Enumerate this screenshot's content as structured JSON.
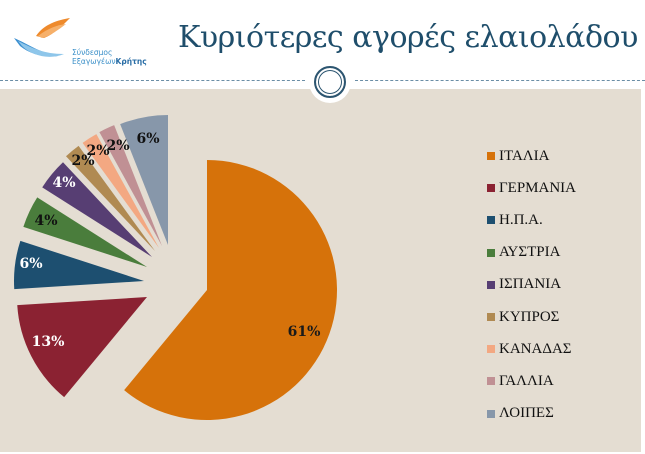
{
  "header": {
    "logo_line1": "Σύνδεσμος",
    "logo_line2_a": "Εξαγωγέων",
    "logo_line2_b": "Κρήτης",
    "title": "Κυριότερες αγορές ελαιολάδου"
  },
  "legend": [
    {
      "label": "ΙΤΑΛΙΑ",
      "color": "#d6720a"
    },
    {
      "label": "ΓΕΡΜΑΝΙΑ",
      "color": "#8b2232"
    },
    {
      "label": "Η.Π.Α.",
      "color": "#1d4f70"
    },
    {
      "label": "ΑΥΣΤΡΙΑ",
      "color": "#4a7d3c"
    },
    {
      "label": "ΙΣΠΑΝΙΑ",
      "color": "#573e73"
    },
    {
      "label": "ΚΥΠΡΟΣ",
      "color": "#b08a52"
    },
    {
      "label": "ΚΑΝΑΔΑΣ",
      "color": "#f3a882"
    },
    {
      "label": "ΓΑΛΛΙΑ",
      "color": "#c09094"
    },
    {
      "label": "ΛΟΙΠΕΣ",
      "color": "#8797aa"
    }
  ],
  "chart_data": {
    "type": "pie",
    "title": "Κυριότερες αγορές ελαιολάδου",
    "categories": [
      "ΙΤΑΛΙΑ",
      "ΓΕΡΜΑΝΙΑ",
      "Η.Π.Α.",
      "ΑΥΣΤΡΙΑ",
      "ΙΣΠΑΝΙΑ",
      "ΚΥΠΡΟΣ",
      "ΚΑΝΑΔΑΣ",
      "ΓΑΛΛΙΑ",
      "ΛΟΙΠΕΣ"
    ],
    "values": [
      61,
      13,
      6,
      4,
      4,
      2,
      2,
      2,
      6
    ],
    "labels": [
      "61%",
      "13%",
      "6%",
      "4%",
      "4%",
      "2%",
      "2%",
      "2%",
      "6%"
    ],
    "colors": [
      "#d6720a",
      "#8b2232",
      "#1d4f70",
      "#4a7d3c",
      "#573e73",
      "#b08a52",
      "#f3a882",
      "#c09094",
      "#8797aa"
    ],
    "label_colors": [
      "#1a1a1a",
      "#ffffff",
      "#ffffff",
      "#111111",
      "#ffffff",
      "#111111",
      "#111111",
      "#111111",
      "#111111"
    ],
    "legend_position": "right",
    "exploded": true
  }
}
